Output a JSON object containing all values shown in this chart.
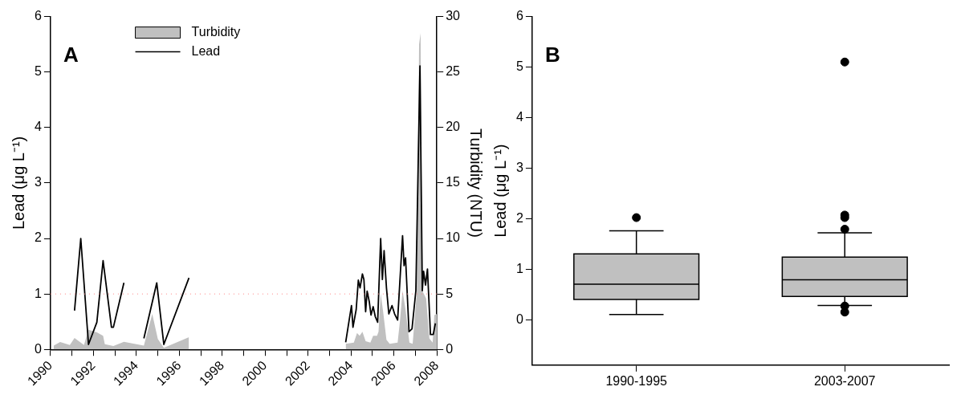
{
  "chart_data": [
    {
      "type": "line",
      "annotations": [
        "A"
      ],
      "ylabel": "Lead (μg L⁻¹)",
      "y2label": "Turbidity (NTU)",
      "legend": "top",
      "grid": false,
      "xlim": [
        1990,
        2008
      ],
      "xticks": [
        1990,
        {
          "value": 1991,
          "label": null
        },
        1992,
        {
          "value": 1993,
          "label": null
        },
        1994,
        {
          "value": 1995,
          "label": null
        },
        1996,
        {
          "value": 1997,
          "label": null
        },
        1998,
        {
          "value": 1999,
          "label": null
        },
        2000,
        {
          "value": 2001,
          "label": null
        },
        2002,
        {
          "value": 2003,
          "label": null
        },
        2004,
        {
          "value": 2005,
          "label": null
        },
        2006,
        {
          "value": 2007,
          "label": null
        },
        2008
      ],
      "ylim": [
        0,
        6
      ],
      "yticks": [
        0,
        1,
        2,
        3,
        4,
        5,
        6
      ],
      "y2lim": [
        0,
        30
      ],
      "y2ticks": [
        0,
        5,
        10,
        15,
        20,
        25,
        30
      ],
      "ref_lines": [
        {
          "axis": "y",
          "value": 1,
          "color": "#ff8080",
          "line_style": "dotted"
        }
      ],
      "series": [
        {
          "name": "Turbidity",
          "type": "area",
          "axis": "y2",
          "color": "#c0c0c0",
          "x": [
            1990.15,
            1990.45,
            1990.9,
            1991.12,
            1991.56,
            1991.77,
            1992.16,
            1992.45,
            1992.53,
            1992.93,
            1993.42,
            1994.35,
            1994.74,
            1995.0,
            1995.28,
            1996.45,
            2000,
            2003.75,
            2004.13,
            2004.28,
            2004.4,
            2004.53,
            2004.68,
            2004.9,
            2005.03,
            2005.21,
            2005.28,
            2005.38,
            2005.5,
            2005.65,
            2005.8,
            2006.17,
            2006.28,
            2006.4,
            2006.54,
            2006.72,
            2006.87,
            2007.06,
            2007.17,
            2007.24,
            2007.32,
            2007.5,
            2007.65,
            2007.8,
            2007.88,
            2008.0
          ],
          "values": [
            0.35,
            0.67,
            0.39,
            1.04,
            0.39,
            1.78,
            1.53,
            1.23,
            0.47,
            0.3,
            0.69,
            0.35,
            3.2,
            0.94,
            0.15,
            1.1,
            null,
            0.5,
            0.62,
            1.48,
            1.23,
            1.6,
            0.74,
            0.62,
            1.23,
            1.23,
            1.6,
            5.06,
            3.33,
            0.86,
            0.5,
            0.62,
            2.59,
            5.3,
            3.58,
            0.62,
            0.5,
            5.06,
            27.5,
            28.5,
            5.3,
            4.57,
            0.99,
            0.62,
            3.09,
            3.2
          ]
        },
        {
          "name": "Lead",
          "type": "line",
          "color": "#000000",
          "x": [
            1991.12,
            1991.41,
            1991.77,
            1992.16,
            1992.45,
            1992.84,
            1992.93,
            1993.42,
            1993.9,
            1994.35,
            1994.95,
            1995.28,
            1996.45,
            2000,
            2003.75,
            2004.02,
            2004.09,
            2004.24,
            2004.34,
            2004.42,
            2004.53,
            2004.6,
            2004.68,
            2004.75,
            2004.85,
            2004.93,
            2005.03,
            2005.13,
            2005.24,
            2005.38,
            2005.46,
            2005.54,
            2005.65,
            2005.76,
            2005.91,
            2006.03,
            2006.17,
            2006.4,
            2006.47,
            2006.54,
            2006.7,
            2006.84,
            2007.02,
            2007.21,
            2007.32,
            2007.38,
            2007.47,
            2007.56,
            2007.7,
            2007.83,
            2007.93
          ],
          "values": [
            0.7,
            2.0,
            0.09,
            0.49,
            1.6,
            0.4,
            0.4,
            1.2,
            null,
            0.2,
            1.2,
            0.09,
            1.29,
            null,
            0.13,
            0.79,
            0.4,
            0.72,
            1.25,
            1.11,
            1.36,
            1.26,
            0.68,
            1.05,
            0.86,
            0.62,
            0.77,
            0.59,
            0.49,
            2.0,
            1.26,
            1.78,
            1.11,
            0.64,
            0.79,
            0.64,
            0.53,
            2.05,
            1.51,
            1.65,
            0.32,
            0.37,
            1.06,
            5.11,
            1.06,
            1.41,
            1.16,
            1.45,
            0.27,
            0.27,
            0.47
          ]
        }
      ]
    },
    {
      "type": "box",
      "annotations": [
        "B"
      ],
      "ylabel": "Lead (μg L⁻¹)",
      "grid": false,
      "color": "#c0c0c0",
      "categories": [
        "1990-1995",
        "2003-2007"
      ],
      "ylim": [
        -0.9,
        6
      ],
      "yticks": [
        0,
        1,
        2,
        3,
        4,
        5,
        6
      ],
      "boxes": [
        {
          "low": 0.1,
          "q1": 0.4,
          "median": 0.7,
          "q3": 1.3,
          "high": 1.76,
          "outliers": [
            2.02
          ]
        },
        {
          "low": 0.28,
          "q1": 0.46,
          "median": 0.79,
          "q3": 1.24,
          "high": 1.72,
          "outliers": [
            5.1,
            2.07,
            2.02,
            1.79,
            0.27,
            0.15
          ]
        }
      ]
    }
  ]
}
